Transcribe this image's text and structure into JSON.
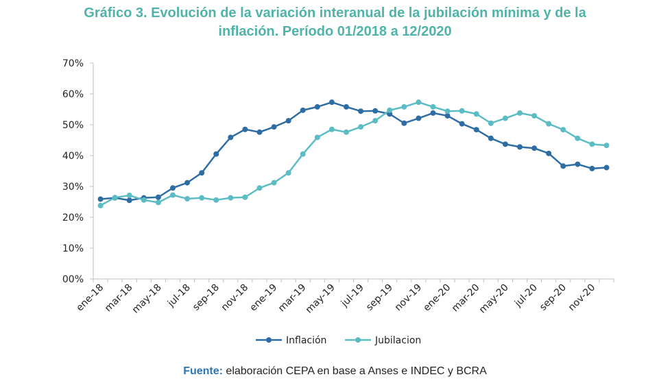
{
  "chart_data": {
    "type": "line",
    "title_line1": "Gráfico 3. Evolución de la variación interanual de la jubilación mínima y de la",
    "title_line2": "inflación. Período 01/2018 a 12/2020",
    "xlabel": "",
    "ylabel": "",
    "ylim": [
      0,
      70
    ],
    "yticks": [
      "00%",
      "10%",
      "20%",
      "30%",
      "40%",
      "50%",
      "60%",
      "70%"
    ],
    "xtick_labels": [
      "ene-18",
      "mar-18",
      "may-18",
      "jul-18",
      "sep-18",
      "nov-18",
      "ene-19",
      "mar-19",
      "may-19",
      "jul-19",
      "sep-19",
      "nov-19",
      "ene-20",
      "mar-20",
      "may-20",
      "jul-20",
      "sep-20",
      "nov-20"
    ],
    "categories": [
      "ene-18",
      "feb-18",
      "mar-18",
      "abr-18",
      "may-18",
      "jun-18",
      "jul-18",
      "ago-18",
      "sep-18",
      "oct-18",
      "nov-18",
      "dic-18",
      "ene-19",
      "feb-19",
      "mar-19",
      "abr-19",
      "may-19",
      "jun-19",
      "jul-19",
      "ago-19",
      "sep-19",
      "oct-19",
      "nov-19",
      "dic-19",
      "ene-20",
      "feb-20",
      "mar-20",
      "abr-20",
      "may-20",
      "jun-20",
      "jul-20",
      "ago-20",
      "sep-20",
      "oct-20",
      "nov-20",
      "dic-20"
    ],
    "series": [
      {
        "name": "Inflación",
        "color": "#2e6da4",
        "values": [
          25.9,
          26.3,
          25.5,
          26.3,
          26.5,
          29.5,
          31.2,
          34.4,
          40.5,
          45.9,
          48.5,
          47.6,
          49.3,
          51.3,
          54.7,
          55.8,
          57.3,
          55.8,
          54.4,
          54.5,
          53.5,
          50.5,
          52.1,
          53.8,
          52.9,
          50.3,
          48.4,
          45.6,
          43.7,
          42.8,
          42.4,
          40.7,
          36.6,
          37.2,
          35.8,
          36.1
        ]
      },
      {
        "name": "Jubilacion",
        "color": "#5bbcc4",
        "values": [
          23.8,
          26.4,
          27.1,
          25.6,
          24.8,
          27.2,
          26.0,
          26.3,
          25.6,
          26.3,
          26.5,
          29.5,
          31.2,
          34.4,
          40.5,
          45.9,
          48.5,
          47.6,
          49.3,
          51.3,
          54.7,
          55.8,
          57.3,
          55.8,
          54.4,
          54.5,
          53.5,
          50.5,
          52.1,
          53.8,
          52.9,
          50.3,
          48.4,
          45.6,
          43.7,
          43.3
        ]
      }
    ],
    "legend_position": "bottom",
    "grid": false
  },
  "footer": {
    "source_label": "Fuente:",
    "source_text": " elaboración CEPA en base a Anses e INDEC y BCRA"
  }
}
